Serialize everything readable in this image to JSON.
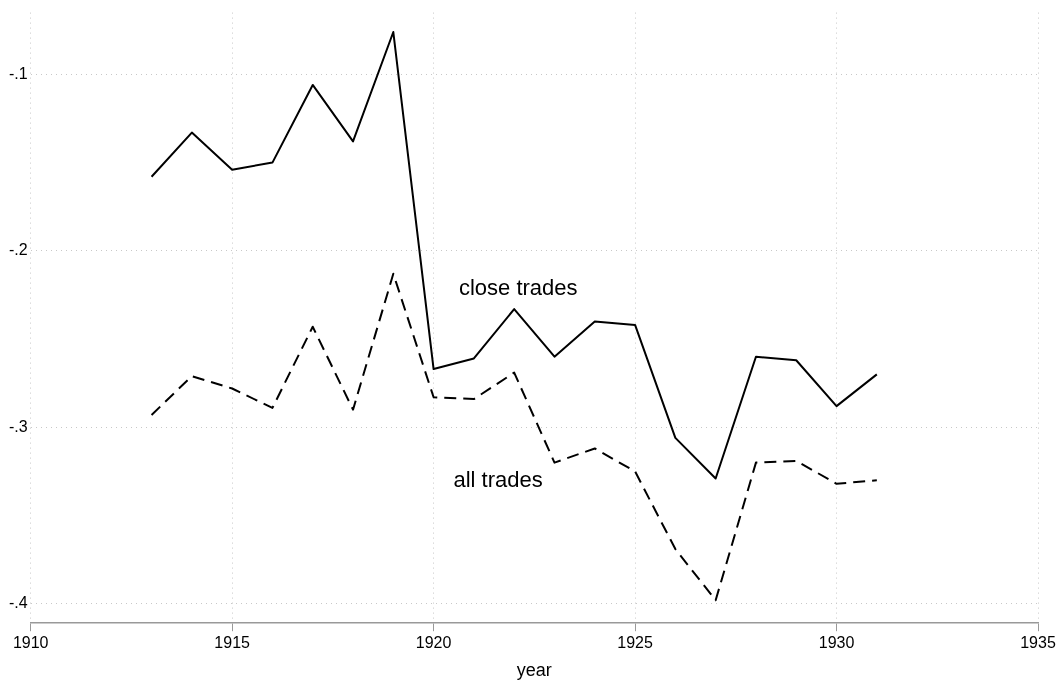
{
  "chart_data": {
    "type": "line",
    "xlabel": "year",
    "x": [
      1913,
      1914,
      1915,
      1916,
      1917,
      1918,
      1919,
      1920,
      1921,
      1922,
      1923,
      1924,
      1925,
      1926,
      1927,
      1928,
      1929,
      1930,
      1931
    ],
    "series": [
      {
        "name": "close trades",
        "color": "#000000",
        "line_style": "solid",
        "values": [
          -0.158,
          -0.133,
          -0.154,
          -0.15,
          -0.106,
          -0.138,
          -0.076,
          -0.267,
          -0.261,
          -0.233,
          -0.26,
          -0.24,
          -0.242,
          -0.306,
          -0.329,
          -0.26,
          -0.262,
          -0.288,
          -0.27
        ]
      },
      {
        "name": "all trades",
        "color": "#000000",
        "line_style": "dashed",
        "values": [
          -0.293,
          -0.271,
          -0.278,
          -0.289,
          -0.243,
          -0.29,
          -0.213,
          -0.283,
          -0.284,
          -0.269,
          -0.32,
          -0.312,
          -0.325,
          -0.369,
          -0.398,
          -0.32,
          -0.319,
          -0.332,
          -0.33
        ]
      }
    ],
    "xlim": [
      1910,
      1935
    ],
    "xticks": [
      1910,
      1915,
      1920,
      1925,
      1930,
      1935
    ],
    "ylim": [
      -0.411,
      -0.065
    ],
    "yticks": [
      {
        "value": -0.4,
        "label": "-.4"
      },
      {
        "value": -0.3,
        "label": "-.3"
      },
      {
        "value": -0.2,
        "label": "-.2"
      },
      {
        "value": -0.1,
        "label": "-.1"
      }
    ],
    "grid": true,
    "legend": false,
    "marker": "none"
  }
}
